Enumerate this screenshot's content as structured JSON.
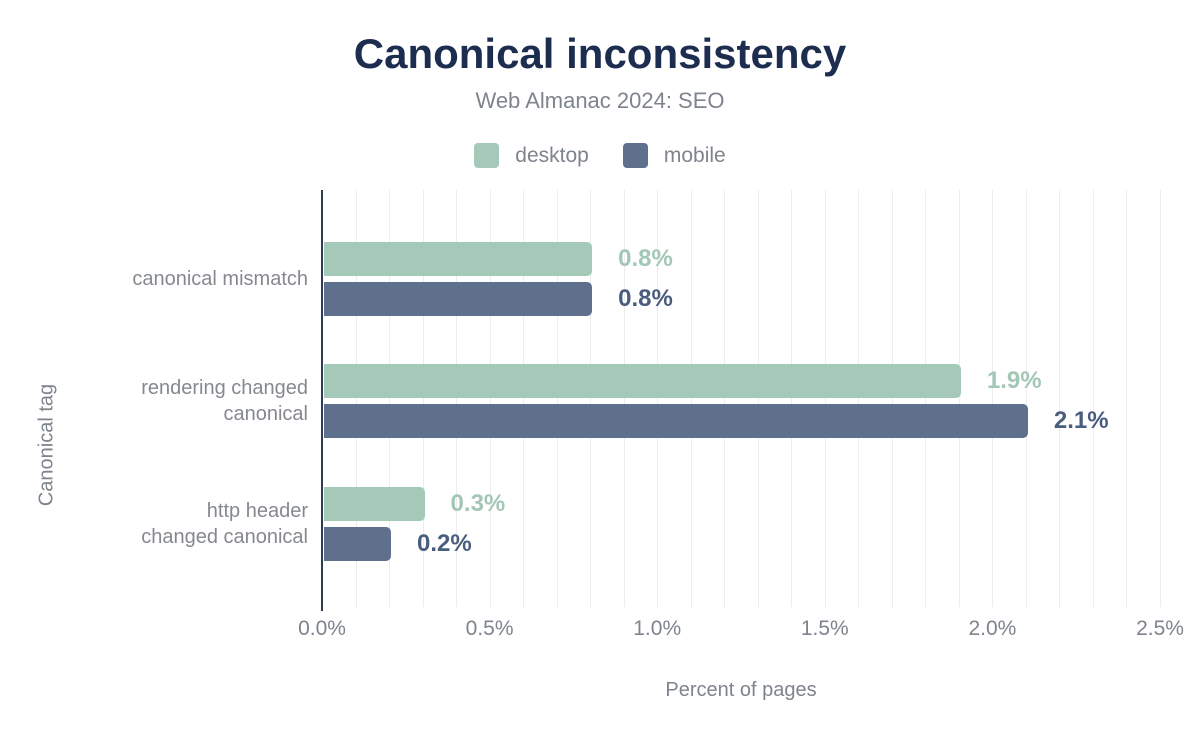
{
  "header": {
    "title": "Canonical inconsistency",
    "subtitle": "Web Almanac 2024: SEO"
  },
  "legend": [
    {
      "label": "desktop",
      "color": "#a5c9b8"
    },
    {
      "label": "mobile",
      "color": "#5e708c"
    }
  ],
  "chart_data": {
    "type": "bar",
    "orientation": "horizontal",
    "title": "Canonical inconsistency",
    "subtitle": "Web Almanac 2024: SEO",
    "categories": [
      "canonical mismatch",
      "rendering changed\ncanonical",
      "http header\nchanged canonical"
    ],
    "series": [
      {
        "name": "desktop",
        "color": "#a5c9b8",
        "label_color": "#a3c7b5",
        "values": [
          0.8,
          1.9,
          0.3
        ],
        "labels": [
          "0.8%",
          "1.9%",
          "0.3%"
        ]
      },
      {
        "name": "mobile",
        "color": "#5e708c",
        "label_color": "#4a5d7e",
        "values": [
          0.8,
          2.1,
          0.2
        ],
        "labels": [
          "0.8%",
          "2.1%",
          "0.2%"
        ]
      }
    ],
    "xlabel": "Percent of pages",
    "ylabel": "Canonical tag",
    "xlim": [
      0,
      2.5
    ],
    "x_ticks": [
      "0.0%",
      "0.5%",
      "1.0%",
      "1.5%",
      "2.0%",
      "2.5%"
    ],
    "grid": "vertical minor gridlines every 0.1%",
    "legend_position": "top"
  },
  "colors": {
    "title": "#1c2d4f",
    "text": "#7e848d",
    "axis_line": "#2c3d55",
    "gridline": "#ededed",
    "background": "#ffffff"
  }
}
